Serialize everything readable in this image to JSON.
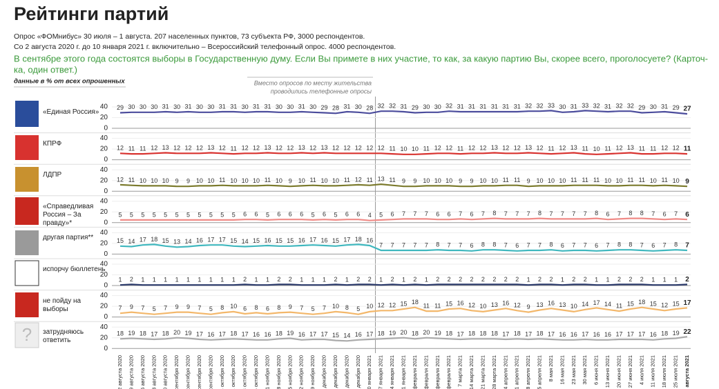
{
  "chart_data": {
    "type": "line",
    "title": "Рейтинги партий",
    "subtitle": [
      "Опрос «ФОМнибус» 30 июля – 1 августа. 207 населенных пунктов, 73 субъекта РФ, 3000 респондентов.",
      "Со 2 августа 2020 г. до 10 января 2021 г. включительно – Всероссийский телефонный опрос. 4000 респондентов."
    ],
    "question": [
      "В сентябре этого года состоятся выборы в Государственную думу. Если Вы примете в них участие, то как, за какую партию Вы, скорее всего, проголосуете? (Карточ-",
      "ка, один ответ.)"
    ],
    "note": "данные в % от всех опрошенных",
    "annotation": [
      "Вместо опросов по месту жительства",
      "проводились телефонные опросы"
    ],
    "categories": [
      "2 августа 2020",
      "9 августа 2020",
      "16 августа 2020",
      "23 августа 2020",
      "30 августа 2020",
      "6 сентября 2020",
      "13 сентября 2020",
      "20 сентября 2020",
      "27 сентября 2020",
      "4 октября 2020",
      "11 октября 2020",
      "18 октября 2020",
      "25 октября 2020",
      "1 ноября 2020",
      "8 ноября 2020",
      "15 ноября 2020",
      "22 ноября 2020",
      "29 ноября 2020",
      "6 декабря 2020",
      "13 декабря 2020",
      "20 декабря 2020",
      "27 декабря 2020",
      "10 января 2021",
      "17 января 2021",
      "24 января 2021",
      "31 января 2021",
      "7 февраля 2021",
      "14 февраля 2021",
      "21 февраля 2021",
      "28 февраля 2021",
      "7 марта 2021",
      "14 марта 2021",
      "21 марта 2021",
      "28 марта 2021",
      "4 апреля 2021",
      "11 апреля 2021",
      "18 апреля 2021",
      "25 апреля 2021",
      "8 мая 2021",
      "16 мая 2021",
      "23 мая 2021",
      "30 мая 2021",
      "6 июня 2021",
      "13 июня 2021",
      "20 июня 2021",
      "27 июня 2021",
      "4 июля 2021",
      "11 июля 2021",
      "18 июля 2021",
      "25 июля 2021",
      "1 августа 2021"
    ],
    "ylim": [
      0,
      40
    ],
    "yticks": [
      0,
      20,
      40
    ],
    "series": [
      {
        "name": "«Единая Россия»",
        "color": "#4b4c9c",
        "values": [
          29,
          30,
          30,
          30,
          31,
          30,
          31,
          30,
          30,
          31,
          31,
          30,
          31,
          31,
          30,
          30,
          31,
          30,
          29,
          28,
          31,
          30,
          28,
          32,
          32,
          31,
          29,
          30,
          30,
          32,
          31,
          31,
          31,
          31,
          31,
          31,
          32,
          32,
          33,
          30,
          31,
          33,
          32,
          31,
          32,
          32,
          29,
          30,
          31,
          29,
          27
        ]
      },
      {
        "name": "КПРФ",
        "color": "#d8322f",
        "values": [
          12,
          11,
          11,
          12,
          13,
          12,
          12,
          12,
          13,
          12,
          11,
          12,
          12,
          13,
          12,
          12,
          13,
          12,
          13,
          12,
          12,
          12,
          12,
          12,
          11,
          10,
          10,
          11,
          12,
          12,
          11,
          12,
          12,
          13,
          12,
          12,
          13,
          12,
          11,
          12,
          13,
          11,
          10,
          11,
          12,
          13,
          11,
          11,
          12,
          12,
          11
        ]
      },
      {
        "name": "ЛДПР",
        "color": "#7b7a2c",
        "values": [
          12,
          11,
          10,
          10,
          10,
          9,
          9,
          10,
          10,
          11,
          10,
          10,
          10,
          11,
          10,
          9,
          10,
          11,
          10,
          10,
          11,
          12,
          11,
          13,
          11,
          9,
          9,
          10,
          10,
          10,
          9,
          9,
          10,
          10,
          11,
          11,
          9,
          10,
          10,
          10,
          11,
          11,
          11,
          10,
          10,
          11,
          11,
          10,
          11,
          10,
          9
        ]
      },
      {
        "name": "«Справедливая Россия – За правду»*",
        "color": "#f08a86",
        "values": [
          5,
          5,
          5,
          5,
          5,
          5,
          5,
          5,
          5,
          5,
          5,
          6,
          6,
          5,
          6,
          6,
          6,
          5,
          6,
          5,
          6,
          6,
          4,
          5,
          6,
          7,
          7,
          7,
          6,
          6,
          7,
          6,
          7,
          8,
          7,
          7,
          7,
          8,
          7,
          7,
          7,
          7,
          8,
          6,
          7,
          8,
          8,
          7,
          6,
          7,
          6
        ]
      },
      {
        "name": "другая партия**",
        "color": "#3fb7be",
        "values": [
          15,
          14,
          17,
          18,
          15,
          13,
          14,
          16,
          17,
          17,
          15,
          14,
          15,
          16,
          15,
          15,
          16,
          17,
          16,
          15,
          17,
          18,
          16,
          7,
          7,
          7,
          7,
          7,
          8,
          7,
          7,
          6,
          8,
          8,
          7,
          6,
          7,
          7,
          8,
          6,
          7,
          7,
          6,
          7,
          8,
          8,
          7,
          6,
          7,
          8,
          7
        ]
      },
      {
        "name": "испорчу бюллетень",
        "color": "#2b3a6b",
        "values": [
          1,
          2,
          1,
          1,
          1,
          1,
          1,
          1,
          1,
          1,
          1,
          2,
          1,
          1,
          2,
          2,
          1,
          1,
          1,
          2,
          1,
          2,
          2,
          1,
          2,
          1,
          2,
          1,
          2,
          2,
          2,
          2,
          2,
          2,
          2,
          2,
          1,
          2,
          2,
          1,
          2,
          2,
          1,
          1,
          2,
          2,
          2,
          1,
          1,
          1,
          2
        ]
      },
      {
        "name": "не пойду на выборы",
        "color": "#f3b76a",
        "values": [
          7,
          9,
          7,
          5,
          7,
          9,
          9,
          7,
          5,
          8,
          10,
          6,
          8,
          6,
          8,
          9,
          7,
          5,
          7,
          10,
          8,
          5,
          10,
          12,
          12,
          15,
          18,
          11,
          11,
          15,
          16,
          12,
          10,
          13,
          16,
          12,
          9,
          13,
          16,
          13,
          10,
          14,
          17,
          14,
          11,
          15,
          18,
          15,
          12,
          15,
          17
        ]
      },
      {
        "name": "затрудняюсь ответить",
        "color": "#aaaaaa",
        "values": [
          18,
          19,
          18,
          17,
          18,
          20,
          19,
          17,
          16,
          17,
          18,
          17,
          16,
          16,
          18,
          19,
          16,
          17,
          17,
          15,
          14,
          16,
          17,
          18,
          19,
          20,
          18,
          20,
          19,
          18,
          17,
          18,
          18,
          18,
          17,
          18,
          17,
          18,
          17,
          16,
          16,
          17,
          16,
          16,
          17,
          17,
          17,
          16,
          18,
          19,
          22
        ]
      }
    ]
  }
}
